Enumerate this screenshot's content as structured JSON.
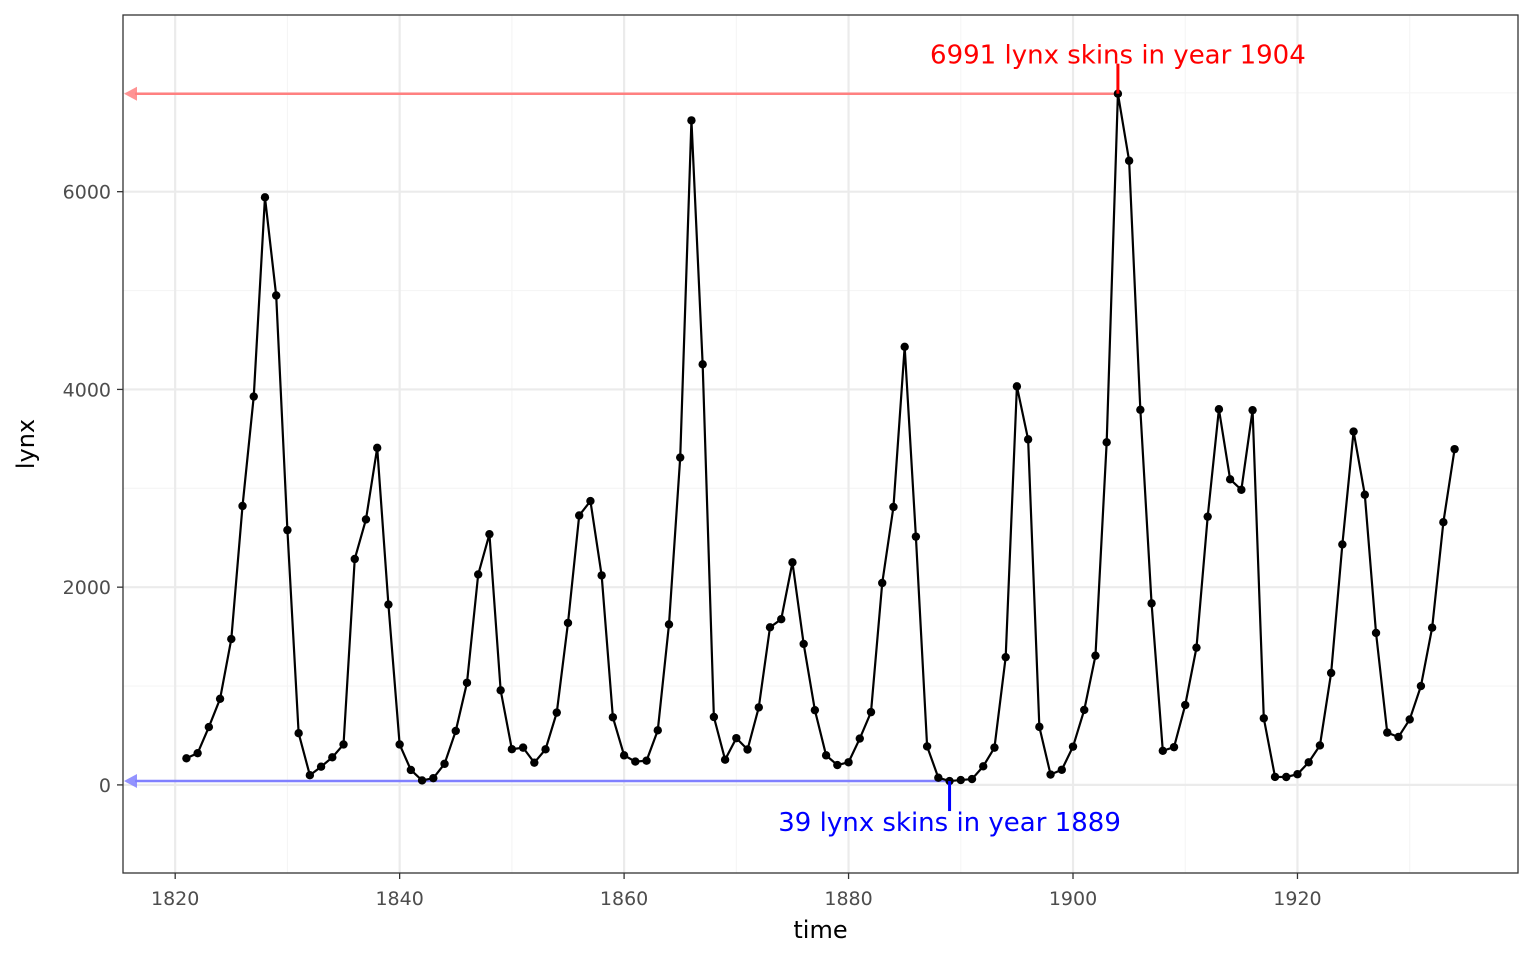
{
  "chart_data": {
    "type": "line",
    "xlabel": "time",
    "ylabel": "lynx",
    "xlim": [
      1815.35,
      1939.65
    ],
    "ylim": [
      -891,
      7787
    ],
    "x_ticks": [
      1820,
      1840,
      1860,
      1880,
      1900,
      1920
    ],
    "y_ticks": [
      0,
      2000,
      4000,
      6000
    ],
    "grid": true,
    "markers": true,
    "series": [
      {
        "x": [
          1821,
          1822,
          1823,
          1824,
          1825,
          1826,
          1827,
          1828,
          1829,
          1830,
          1831,
          1832,
          1833,
          1834,
          1835,
          1836,
          1837,
          1838,
          1839,
          1840,
          1841,
          1842,
          1843,
          1844,
          1845,
          1846,
          1847,
          1848,
          1849,
          1850,
          1851,
          1852,
          1853,
          1854,
          1855,
          1856,
          1857,
          1858,
          1859,
          1860,
          1861,
          1862,
          1863,
          1864,
          1865,
          1866,
          1867,
          1868,
          1869,
          1870,
          1871,
          1872,
          1873,
          1874,
          1875,
          1876,
          1877,
          1878,
          1879,
          1880,
          1881,
          1882,
          1883,
          1884,
          1885,
          1886,
          1887,
          1888,
          1889,
          1890,
          1891,
          1892,
          1893,
          1894,
          1895,
          1896,
          1897,
          1898,
          1899,
          1900,
          1901,
          1902,
          1903,
          1904,
          1905,
          1906,
          1907,
          1908,
          1909,
          1910,
          1911,
          1912,
          1913,
          1914,
          1915,
          1916,
          1917,
          1918,
          1919,
          1920,
          1921,
          1922,
          1923,
          1924,
          1925,
          1926,
          1927,
          1928,
          1929,
          1930,
          1931,
          1932,
          1933,
          1934
        ],
        "values": [
          269,
          321,
          585,
          871,
          1475,
          2821,
          3928,
          5943,
          4950,
          2577,
          523,
          98,
          184,
          279,
          409,
          2285,
          2685,
          3409,
          1824,
          409,
          151,
          45,
          68,
          213,
          546,
          1033,
          2129,
          2536,
          957,
          361,
          377,
          225,
          360,
          731,
          1638,
          2725,
          2871,
          2119,
          684,
          299,
          236,
          245,
          552,
          1623,
          3311,
          6721,
          4254,
          687,
          255,
          473,
          358,
          784,
          1594,
          1676,
          2251,
          1426,
          756,
          299,
          201,
          229,
          469,
          736,
          2042,
          2811,
          4431,
          2511,
          389,
          73,
          39,
          49,
          59,
          188,
          377,
          1292,
          4031,
          3495,
          587,
          105,
          153,
          387,
          758,
          1307,
          3465,
          6991,
          6313,
          3794,
          1836,
          345,
          382,
          808,
          1388,
          2713,
          3800,
          3091,
          2985,
          3790,
          674,
          81,
          80,
          108,
          229,
          399,
          1132,
          2432,
          3574,
          2935,
          1537,
          529,
          485,
          662,
          1000,
          1590,
          2657,
          3396
        ]
      }
    ],
    "annotations": [
      {
        "text": "6991 lynx skins in year 1904",
        "x": 1904,
        "y": 6991,
        "color": "#ff0000",
        "arrow_color": "#ff8080"
      },
      {
        "text": "39 lynx skins in year 1889",
        "x": 1889,
        "y": 39,
        "color": "#0000ff",
        "arrow_color": "#8080ff"
      }
    ],
    "colors": {
      "line": "#000000",
      "grid_major": "#ebebeb",
      "grid_minor": "#f5f5f5",
      "panel_border": "#333333",
      "tick_label": "#4d4d4d"
    }
  }
}
